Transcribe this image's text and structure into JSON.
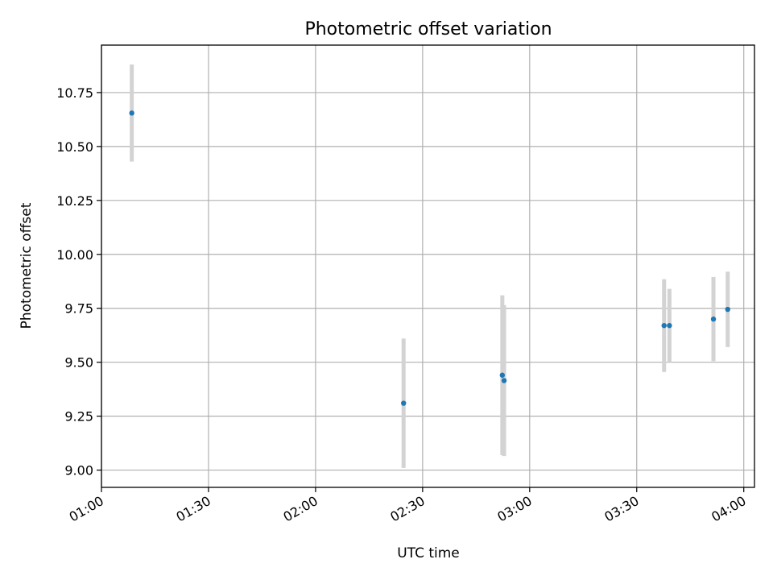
{
  "chart_data": {
    "type": "scatter",
    "title": "Photometric offset variation",
    "xlabel": "UTC time",
    "ylabel": "Photometric offset",
    "x_axis_type": "time",
    "xlim": [
      "01:00",
      "04:03"
    ],
    "ylim": [
      8.92,
      10.97
    ],
    "x_ticks": [
      "01:00",
      "01:30",
      "02:00",
      "02:30",
      "03:00",
      "03:30",
      "04:00"
    ],
    "y_ticks": [
      "9.00",
      "9.25",
      "9.50",
      "9.75",
      "10.00",
      "10.25",
      "10.50",
      "10.75"
    ],
    "grid": true,
    "legend": "none",
    "point_color": "#1f77b4",
    "errorbar_color": "#d3d3d3",
    "points": [
      {
        "x": "01:08:30",
        "y": 10.655,
        "yerr": 0.225
      },
      {
        "x": "02:24:40",
        "y": 9.31,
        "yerr": 0.3
      },
      {
        "x": "02:52:20",
        "y": 9.44,
        "yerr": 0.37
      },
      {
        "x": "02:52:50",
        "y": 9.415,
        "yerr": 0.35
      },
      {
        "x": "03:37:40",
        "y": 9.67,
        "yerr": 0.215
      },
      {
        "x": "03:39:10",
        "y": 9.67,
        "yerr": 0.17
      },
      {
        "x": "03:51:30",
        "y": 9.7,
        "yerr": 0.195
      },
      {
        "x": "03:55:30",
        "y": 9.745,
        "yerr": 0.175
      }
    ]
  }
}
